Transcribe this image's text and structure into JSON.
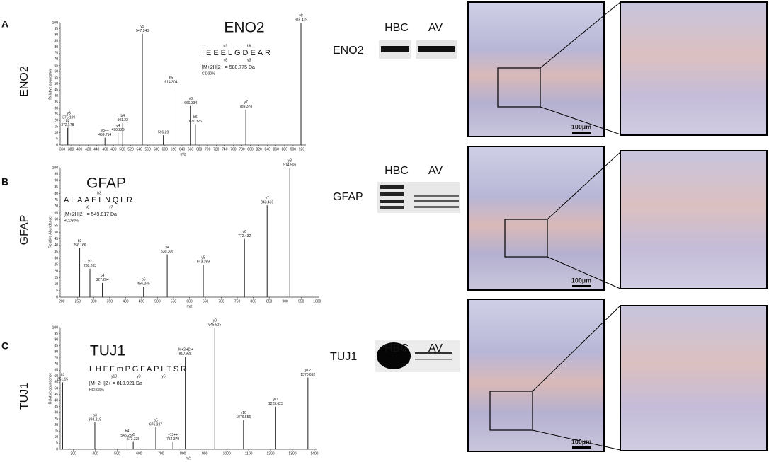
{
  "chart_data": [
    {
      "type": "bar",
      "title": "ENO2",
      "sequence": "IEEELGDEAR",
      "fragments_above": [
        "b3",
        "b6"
      ],
      "fragments_below": [
        "y8",
        "y3"
      ],
      "precursor": "[M+2H]2+ = 580.775 Da",
      "method": "CID30%",
      "x_label": "m/z",
      "y_label": "Relative abundance",
      "x": [
        372.178,
        375.199,
        459.714,
        490.229,
        501.22,
        547.248,
        596.29,
        614.304,
        660.334,
        671.326,
        789.378,
        918.419
      ],
      "ions": [
        "b3",
        "y3",
        "y8++",
        "y4",
        "b4",
        "y5",
        null,
        "b5",
        "y6",
        "b6",
        "y7",
        "y8"
      ],
      "values": [
        14,
        20,
        6,
        10,
        18,
        91,
        8,
        49,
        32,
        17,
        29,
        100
      ],
      "color": "#222",
      "xlim": [
        355,
        930
      ],
      "xticks": [
        360,
        380,
        400,
        420,
        440,
        460,
        480,
        500,
        520,
        540,
        560,
        580,
        600,
        620,
        640,
        660,
        680,
        700,
        720,
        740,
        760,
        780,
        800,
        820,
        840,
        860,
        880,
        900,
        920
      ],
      "ylim": [
        0,
        100
      ],
      "yticks": [
        0,
        5,
        10,
        15,
        20,
        25,
        30,
        35,
        40,
        45,
        50,
        55,
        60,
        65,
        70,
        75,
        80,
        85,
        90,
        95,
        100
      ]
    },
    {
      "type": "bar",
      "title": "GFAP",
      "sequence": "ALAAELNQLR",
      "fragments_above": [
        "b3"
      ],
      "fragments_below": [
        "y8",
        "y7"
      ],
      "precursor": "[M+2H]2+ = 549.817 Da",
      "method": "HCD30%",
      "x_label": "m/z",
      "y_label": "Relative Abundance",
      "x": [
        256.166,
        288.203,
        327.204,
        456.245,
        530.306,
        643.389,
        772.432,
        843.469,
        914.506
      ],
      "ions": [
        "b3",
        "y2",
        "b4",
        "b5",
        "y4",
        "y5",
        "y6",
        "y7",
        "y8"
      ],
      "values": [
        38,
        22,
        11,
        8,
        33,
        25,
        45,
        71,
        100
      ],
      "color": "#222",
      "xlim": [
        195,
        1005
      ],
      "xticks": [
        200,
        250,
        300,
        350,
        400,
        450,
        500,
        550,
        600,
        650,
        700,
        750,
        800,
        850,
        900,
        950,
        1000
      ],
      "ylim": [
        0,
        100
      ],
      "yticks": [
        0,
        5,
        10,
        15,
        20,
        25,
        30,
        35,
        40,
        45,
        50,
        55,
        60,
        65,
        70,
        75,
        80,
        85,
        90,
        95,
        100
      ]
    },
    {
      "type": "bar",
      "title": "TUJ1",
      "sequence": "LHFFmPGFAPLTSR",
      "fragments_above": [],
      "fragments_below": [
        "y13",
        "y9",
        "y5"
      ],
      "precursor": "[M+2H]2+ = 810.921 Da",
      "method": "HCD30%",
      "x_label": "m/z",
      "y_label": "Relative abundance",
      "x": [
        251.15,
        398.219,
        545.287,
        573.335,
        676.327,
        754.379,
        810.921,
        945.515,
        1076.556,
        1223.623,
        1370.692
      ],
      "ions": [
        "b2",
        "b3",
        "b4",
        "y5",
        "b5",
        "y13++",
        "[M+2H]2+",
        "y9",
        "y10",
        "y11",
        "y12"
      ],
      "values": [
        55,
        22,
        9,
        6,
        18,
        6,
        76,
        100,
        24,
        35,
        59
      ],
      "color": "#222",
      "xlim": [
        240,
        1410
      ],
      "xticks": [
        300,
        400,
        500,
        600,
        700,
        800,
        900,
        1000,
        1100,
        1200,
        1300,
        1400
      ],
      "ylim": [
        0,
        100
      ],
      "yticks": [
        0,
        5,
        10,
        15,
        20,
        25,
        30,
        35,
        40,
        45,
        50,
        55,
        60,
        65,
        70,
        75,
        80,
        85,
        90,
        95,
        100
      ]
    }
  ],
  "panels": [
    {
      "letter": "A",
      "row_label": "ENO2",
      "blot_protein": "ENO2",
      "lanes": [
        "HBC",
        "AV"
      ],
      "scale_bar": "100µm"
    },
    {
      "letter": "B",
      "row_label": "GFAP",
      "blot_protein": "GFAP",
      "lanes": [
        "HBC",
        "AV"
      ],
      "scale_bar": "100µm"
    },
    {
      "letter": "C",
      "row_label": "TUJ1",
      "blot_protein": "TUJ1",
      "lanes": [
        "HBC",
        "AV"
      ],
      "scale_bar": "100µm"
    }
  ]
}
